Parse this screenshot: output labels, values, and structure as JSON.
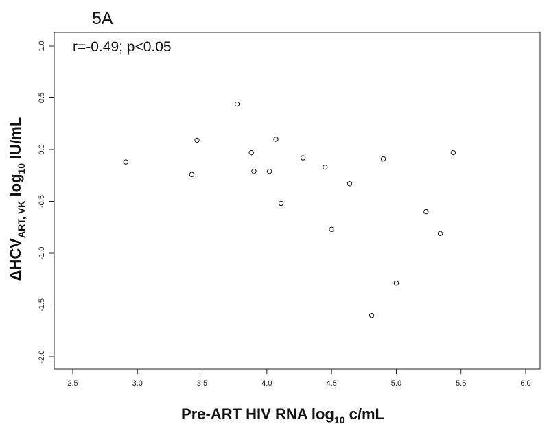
{
  "panel_label": "5A",
  "annotation": "r=-0.49; p<0.05",
  "chart_data": {
    "type": "scatter",
    "xlabel": {
      "main": "Pre-ART HIV RNA log",
      "sub": "10",
      "tail": " c/mL"
    },
    "ylabel": {
      "prefix": "ΔHCV",
      "sub": "ART, VK",
      "tail": " log",
      "sub2": "10",
      "end": " IU/mL"
    },
    "xlim": [
      2.5,
      6.0
    ],
    "ylim": [
      -2.0,
      1.0
    ],
    "xticks": [
      "2.5",
      "3.0",
      "3.5",
      "4.0",
      "4.5",
      "5.0",
      "5.5",
      "6.0"
    ],
    "yticks": [
      "-2.0",
      "-1.5",
      "-1.0",
      "-0.5",
      "0.0",
      "0.5",
      "1.0"
    ],
    "x": [
      2.91,
      3.42,
      3.46,
      3.77,
      3.88,
      3.9,
      4.02,
      4.07,
      4.11,
      4.28,
      4.45,
      4.5,
      4.64,
      4.81,
      4.9,
      5.0,
      5.23,
      5.34,
      5.44
    ],
    "y": [
      -0.12,
      -0.24,
      0.09,
      0.44,
      -0.03,
      -0.21,
      -0.21,
      0.1,
      -0.52,
      -0.08,
      -0.17,
      -0.77,
      -0.33,
      -1.6,
      -0.09,
      -1.29,
      -0.6,
      -0.81,
      -0.03
    ]
  }
}
